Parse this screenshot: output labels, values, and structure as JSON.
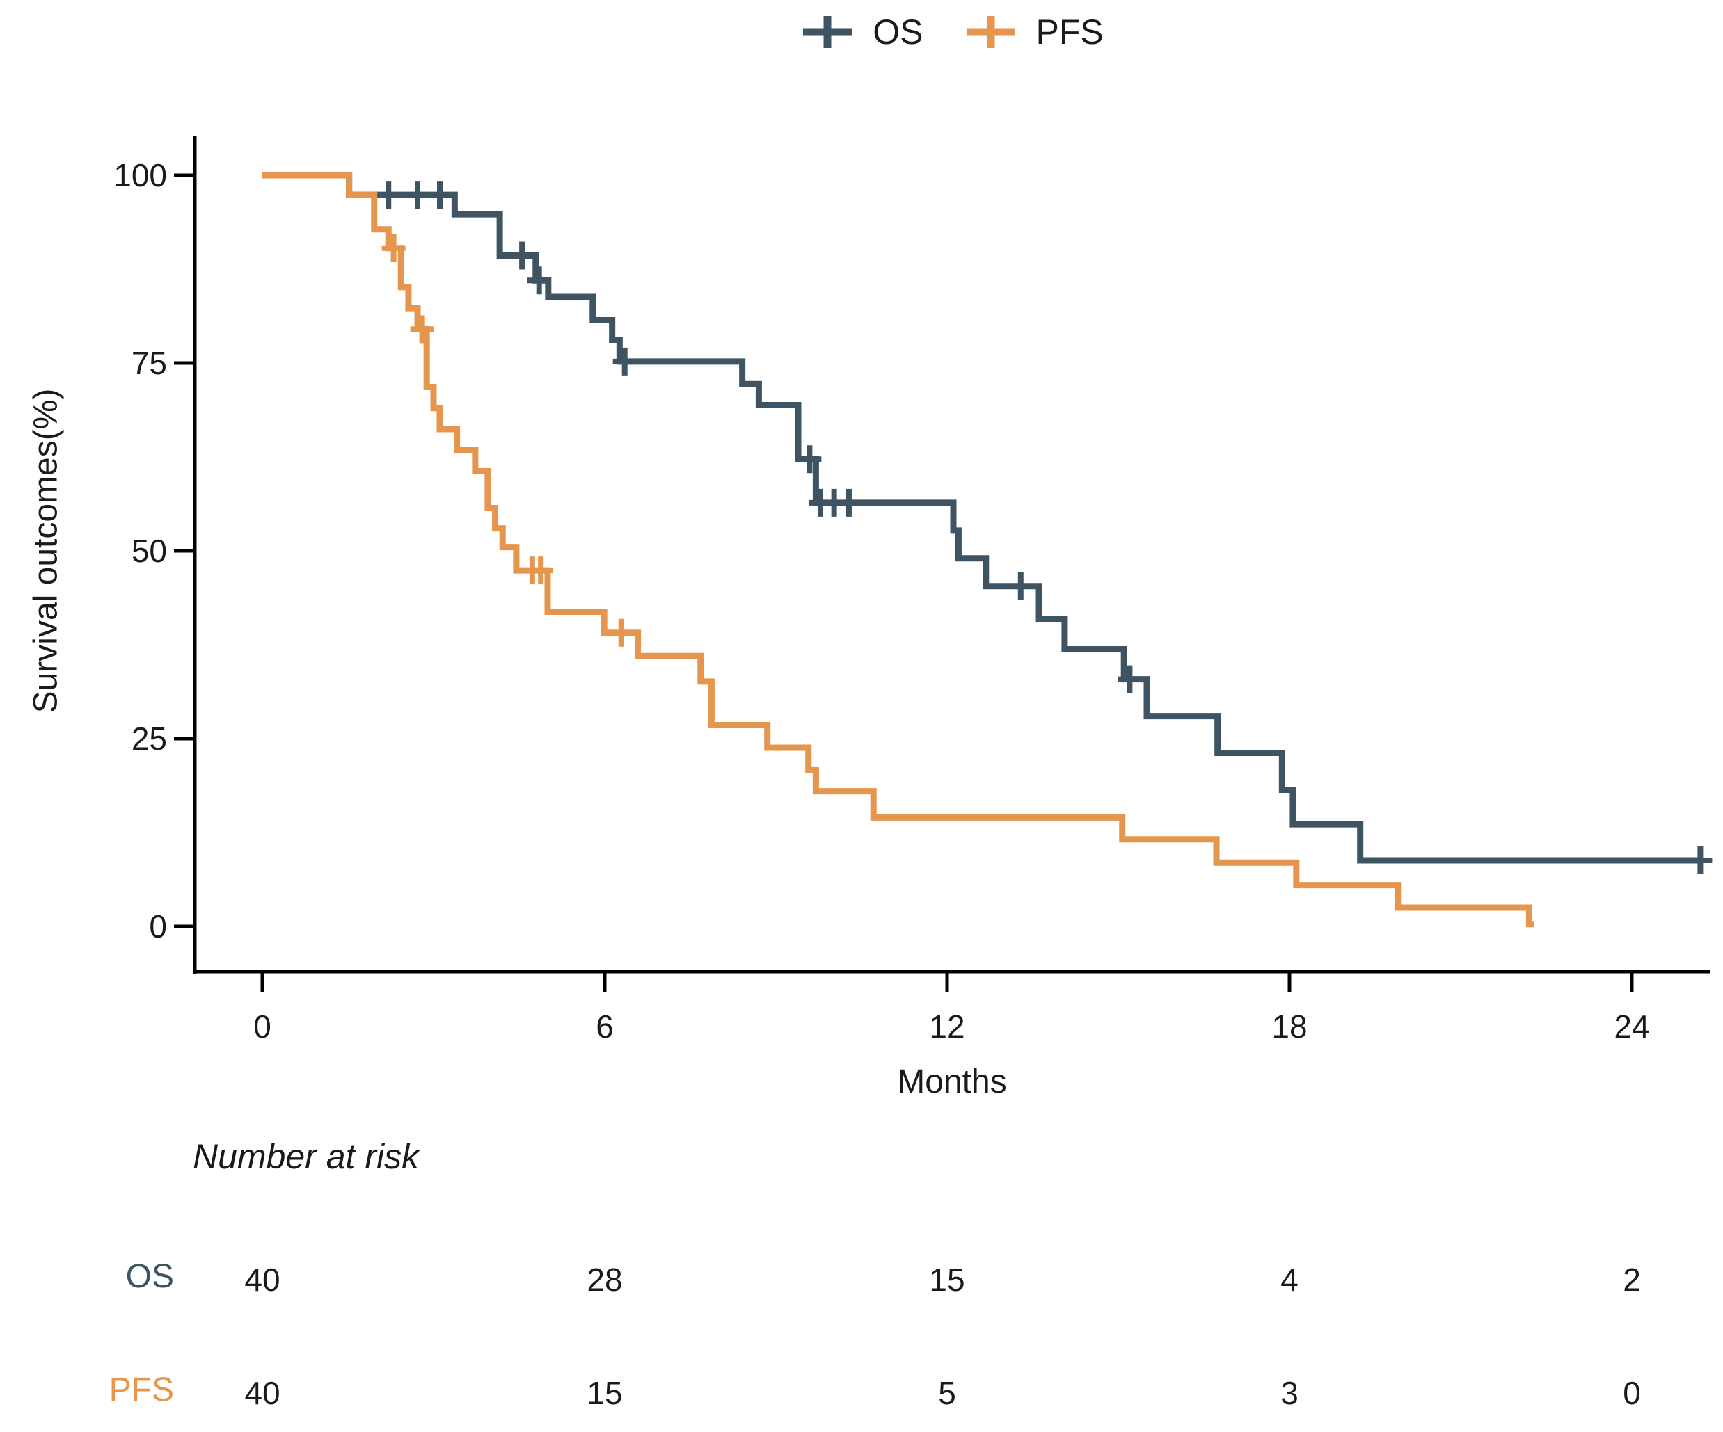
{
  "page": {
    "background": "#ffffff",
    "text_color": "#1a1a1a",
    "axis_color": "#000000"
  },
  "chart_data": {
    "type": "line",
    "subtype": "kaplan-meier-step-curves",
    "title": "",
    "xlabel": "Months",
    "ylabel": "Survival outcomes(%)",
    "xlim": [
      0,
      25.6
    ],
    "ylim": [
      0,
      100
    ],
    "x_ticks": [
      0,
      6,
      12,
      18,
      24
    ],
    "y_ticks": [
      0,
      25,
      50,
      75,
      100
    ],
    "grid": false,
    "legend_position": "top-center",
    "censor_marker": "plus",
    "series": [
      {
        "name": "OS",
        "color": "#3E5463",
        "end_t": 25.2,
        "steps": [
          [
            0,
            100
          ],
          [
            1.52,
            97.4
          ],
          [
            3.37,
            94.8
          ],
          [
            4.16,
            89.3
          ],
          [
            4.79,
            86.0
          ],
          [
            5.01,
            83.8
          ],
          [
            5.79,
            80.7
          ],
          [
            6.13,
            78.1
          ],
          [
            6.26,
            75.2
          ],
          [
            8.41,
            72.2
          ],
          [
            8.7,
            69.4
          ],
          [
            9.39,
            62.2
          ],
          [
            9.7,
            56.4
          ],
          [
            12.11,
            52.7
          ],
          [
            12.2,
            49.0
          ],
          [
            12.68,
            45.3
          ],
          [
            13.61,
            40.9
          ],
          [
            14.06,
            36.9
          ],
          [
            15.1,
            32.9
          ],
          [
            15.5,
            28.0
          ],
          [
            16.74,
            23.1
          ],
          [
            17.87,
            18.2
          ],
          [
            18.06,
            13.6
          ],
          [
            19.24,
            8.8
          ]
        ],
        "censors": [
          [
            2.21,
            97.4
          ],
          [
            2.72,
            97.4
          ],
          [
            3.11,
            97.4
          ],
          [
            4.55,
            89.3
          ],
          [
            4.85,
            86.0
          ],
          [
            6.35,
            75.2
          ],
          [
            9.59,
            62.2
          ],
          [
            9.78,
            56.4
          ],
          [
            10.02,
            56.4
          ],
          [
            10.28,
            56.4
          ],
          [
            13.29,
            45.3
          ],
          [
            15.2,
            32.9
          ],
          [
            25.2,
            8.8
          ]
        ]
      },
      {
        "name": "PFS",
        "color": "#E5954C",
        "end_t": 22.28,
        "steps": [
          [
            0,
            100
          ],
          [
            1.52,
            97.4
          ],
          [
            1.96,
            92.8
          ],
          [
            2.21,
            90.3
          ],
          [
            2.43,
            85.1
          ],
          [
            2.56,
            82.3
          ],
          [
            2.72,
            79.5
          ],
          [
            2.88,
            71.8
          ],
          [
            3.0,
            69.0
          ],
          [
            3.11,
            66.2
          ],
          [
            3.41,
            63.4
          ],
          [
            3.73,
            60.6
          ],
          [
            3.95,
            55.7
          ],
          [
            4.08,
            53.0
          ],
          [
            4.21,
            50.5
          ],
          [
            4.45,
            47.4
          ],
          [
            5.0,
            41.9
          ],
          [
            5.99,
            39.1
          ],
          [
            6.58,
            36.0
          ],
          [
            7.68,
            32.6
          ],
          [
            7.87,
            26.8
          ],
          [
            8.85,
            23.8
          ],
          [
            9.57,
            20.8
          ],
          [
            9.7,
            18.0
          ],
          [
            10.71,
            14.5
          ],
          [
            15.07,
            11.6
          ],
          [
            16.72,
            8.5
          ],
          [
            18.12,
            5.5
          ],
          [
            19.9,
            2.5
          ],
          [
            22.2,
            0.3
          ]
        ],
        "censors": [
          [
            2.3,
            90.3
          ],
          [
            2.8,
            79.5
          ],
          [
            4.73,
            47.4
          ],
          [
            4.88,
            47.4
          ],
          [
            6.29,
            39.1
          ]
        ]
      }
    ],
    "risk_table": {
      "header": "Number at risk",
      "times": [
        0,
        6,
        12,
        18,
        24
      ],
      "rows": [
        {
          "name": "OS",
          "color": "#3E5463",
          "values": [
            40,
            28,
            15,
            4,
            2
          ]
        },
        {
          "name": "PFS",
          "color": "#E5954C",
          "values": [
            40,
            15,
            5,
            3,
            0
          ]
        }
      ]
    }
  }
}
